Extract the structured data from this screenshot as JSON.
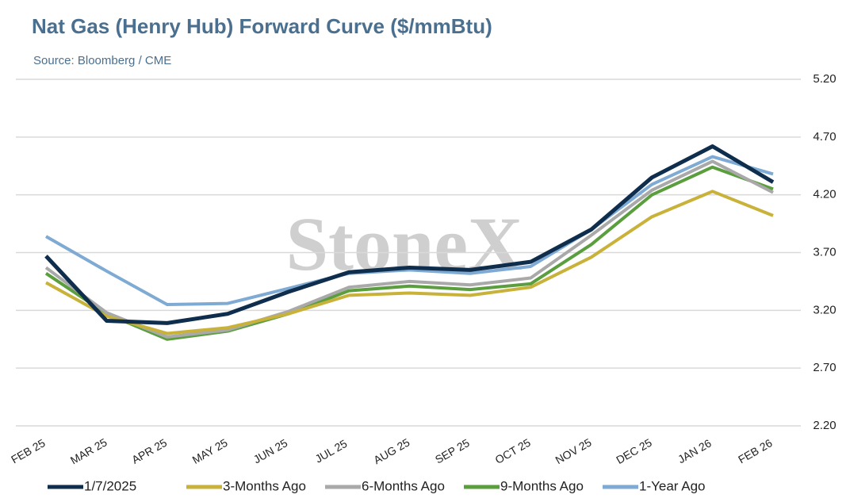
{
  "chart_data": {
    "type": "line",
    "title": "Nat Gas (Henry Hub) Forward Curve ($/mmBtu)",
    "subtitle": "Source: Bloomberg / CME",
    "watermark": "StoneX",
    "categories": [
      "FEB 25",
      "MAR 25",
      "APR 25",
      "MAY 25",
      "JUN 25",
      "JUL 25",
      "AUG 25",
      "SEP 25",
      "OCT 25",
      "NOV 25",
      "DEC 25",
      "JAN 26",
      "FEB 26"
    ],
    "series": [
      {
        "name": "1/7/2025",
        "color": "#0f2d4c",
        "values": [
          3.67,
          3.11,
          3.09,
          3.17,
          3.36,
          3.53,
          3.57,
          3.55,
          3.62,
          3.9,
          4.35,
          4.62,
          4.31
        ]
      },
      {
        "name": "3-Months Ago",
        "color": "#c9b23a",
        "values": [
          3.44,
          3.15,
          3.0,
          3.05,
          3.17,
          3.33,
          3.35,
          3.33,
          3.4,
          3.66,
          4.01,
          4.23,
          4.02
        ]
      },
      {
        "name": "6-Months Ago",
        "color": "#a9a9a9",
        "values": [
          3.57,
          3.18,
          2.97,
          3.03,
          3.19,
          3.4,
          3.45,
          3.42,
          3.48,
          3.85,
          4.24,
          4.49,
          4.22
        ]
      },
      {
        "name": "9-Months Ago",
        "color": "#5a9e3e",
        "values": [
          3.52,
          3.17,
          2.95,
          3.02,
          3.17,
          3.37,
          3.41,
          3.38,
          3.43,
          3.77,
          4.2,
          4.44,
          4.25
        ]
      },
      {
        "name": "1-Year Ago",
        "color": "#7eaad3",
        "values": [
          3.84,
          3.54,
          3.25,
          3.26,
          3.39,
          3.52,
          3.55,
          3.52,
          3.58,
          3.9,
          4.29,
          4.53,
          4.38
        ]
      }
    ],
    "ylim": [
      2.2,
      5.2
    ],
    "yticks": [
      {
        "value": 2.2,
        "label": "2.20"
      },
      {
        "value": 2.7,
        "label": "2.70"
      },
      {
        "value": 3.2,
        "label": "3.20"
      },
      {
        "value": 3.7,
        "label": "3.70"
      },
      {
        "value": 4.2,
        "label": "4.20"
      },
      {
        "value": 4.7,
        "label": "4.70"
      },
      {
        "value": 5.2,
        "label": "5.20"
      }
    ],
    "grid": true
  }
}
